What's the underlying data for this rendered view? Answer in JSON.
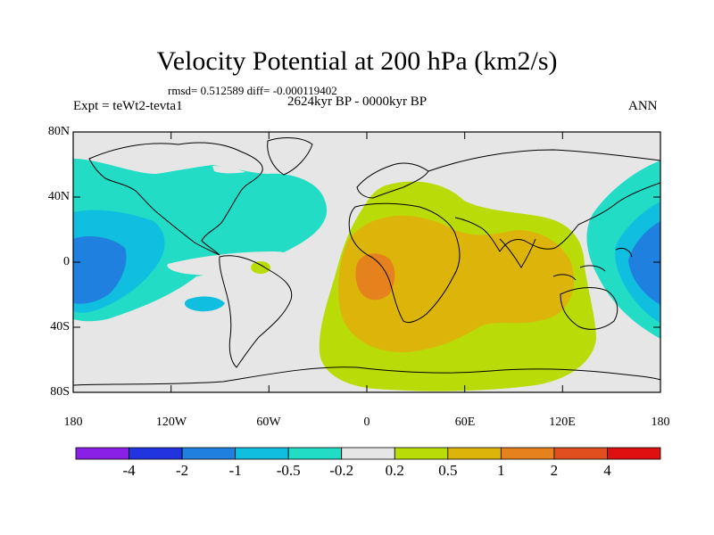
{
  "figure": {
    "title": "Velocity Potential at 200 hPa (km2/s)",
    "stats": "rmsd= 0.512589 diff= -0.000119402",
    "period": "2624kyr BP - 0000kyr BP",
    "experiment": "Expt = teWt2-tevta1",
    "season": "ANN"
  },
  "axes": {
    "y_ticks": [
      "80N",
      "40N",
      "0",
      "40S",
      "80S"
    ],
    "x_ticks": [
      "180",
      "120W",
      "60W",
      "0",
      "60E",
      "120E",
      "180"
    ]
  },
  "colorbar": {
    "labels": [
      "-4",
      "-2",
      "-1",
      "-0.5",
      "-0.2",
      "0.2",
      "0.5",
      "1",
      "2",
      "4"
    ],
    "colors": [
      "#8a1fe6",
      "#2233e0",
      "#1f80e0",
      "#10bfe0",
      "#22dcc6",
      "#e6e6e6",
      "#b9dc08",
      "#dcb40a",
      "#e6821e",
      "#e0501e",
      "#e01010"
    ]
  }
}
